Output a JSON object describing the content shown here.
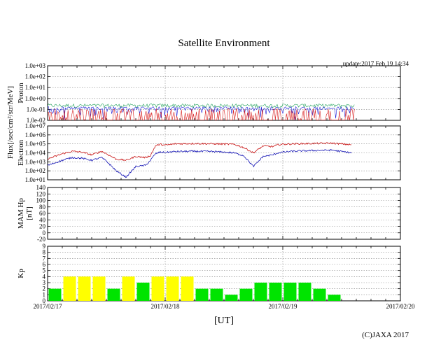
{
  "title": "Satellite Environment",
  "update": "update:2017 Feb 19 14:34",
  "copyright": "(C)JAXA 2017",
  "xlabel": "[UT]",
  "shared_ylabel": "Flux[/sec/cm²/str/MeV]",
  "colors": {
    "proton_green": "#1fa05a",
    "proton_blue": "#1d1dd8",
    "proton_red": "#d81d1d",
    "electron_red": "#c81414",
    "electron_blue": "#1414b4",
    "kp_yellow": "#ffff00",
    "kp_green": "#00e400",
    "grid": "#888888"
  },
  "chart_data": [
    {
      "id": "proton",
      "type": "line",
      "ylabel": "Proton",
      "yscale": "log",
      "ylim": [
        0.01,
        1000
      ],
      "yticks": [
        "1.0e-02",
        "1.0e-01",
        "1.0e+00",
        "1.0e+01",
        "1.0e+02",
        "1.0e+03"
      ],
      "xlim": [
        "2017/02/17 00:00",
        "2017/02/20 00:00"
      ],
      "x_end": "2017/02/19 14:34",
      "series": [
        {
          "color": "green",
          "typical": 0.2,
          "min": 0.12,
          "max": 0.35
        },
        {
          "color": "blue",
          "typical": 0.12,
          "min": 0.01,
          "max": 0.3
        },
        {
          "color": "red",
          "typical": 0.02,
          "min": 0.01,
          "max": 0.12
        }
      ]
    },
    {
      "id": "electron",
      "type": "line",
      "ylabel": "Electron",
      "yscale": "log",
      "ylim": [
        10,
        10000000
      ],
      "yticks": [
        "1.0e+01",
        "1.0e+02",
        "1.0e+03",
        "1.0e+04",
        "1.0e+05",
        "1.0e+06",
        "1.0e+07"
      ],
      "x_hours": [
        0,
        3,
        5,
        7,
        9,
        11,
        12,
        14,
        16,
        18,
        20,
        21,
        22,
        23,
        24,
        26,
        30,
        34,
        38,
        40,
        42,
        44,
        46,
        47,
        48,
        50,
        54,
        58,
        62
      ],
      "series": [
        {
          "color": "red",
          "values": [
            2000,
            8000,
            15000,
            12000,
            6000,
            15000,
            8000,
            2000,
            1500,
            4000,
            3000,
            5000,
            60000,
            90000,
            70000,
            100000,
            110000,
            100000,
            90000,
            40000,
            10000,
            60000,
            50000,
            80000,
            90000,
            100000,
            110000,
            120000,
            80000
          ]
        },
        {
          "color": "blue",
          "values": [
            400,
            1500,
            3000,
            2500,
            1500,
            3000,
            1200,
            100,
            20,
            300,
            400,
            1500,
            8000,
            12000,
            11000,
            14000,
            15000,
            14000,
            10000,
            5000,
            300,
            4000,
            6000,
            10000,
            12000,
            15000,
            18000,
            20000,
            10000
          ]
        }
      ]
    },
    {
      "id": "mam-hp",
      "type": "line",
      "ylabel": "MAM Hp",
      "yunit": "[nT]",
      "ylim": [
        -20,
        140
      ],
      "yticks": [
        -20,
        0,
        20,
        40,
        60,
        80,
        100,
        120,
        140
      ],
      "series": []
    },
    {
      "id": "kp",
      "type": "bar",
      "ylabel": "Kp",
      "ylim": [
        0,
        9
      ],
      "yticks": [
        0,
        1,
        2,
        3,
        4,
        5,
        6,
        7,
        8,
        9
      ],
      "x_start_hours": [
        0,
        3,
        6,
        9,
        12,
        15,
        18,
        21,
        24,
        27,
        30,
        33,
        36,
        39,
        42,
        45,
        48,
        51,
        54,
        57,
        60
      ],
      "values": [
        2,
        4,
        4,
        4,
        2,
        4,
        3,
        4,
        4,
        4,
        2,
        2,
        1,
        2,
        3,
        3,
        3,
        3,
        2,
        1,
        0
      ],
      "colors": [
        "green",
        "yellow",
        "yellow",
        "yellow",
        "green",
        "yellow",
        "green",
        "yellow",
        "yellow",
        "yellow",
        "green",
        "green",
        "green",
        "green",
        "green",
        "green",
        "green",
        "green",
        "green",
        "green",
        "green"
      ]
    }
  ],
  "x_tick_labels": [
    "2017/02/17",
    "2017/02/18",
    "2017/02/19",
    "2017/02/20"
  ]
}
